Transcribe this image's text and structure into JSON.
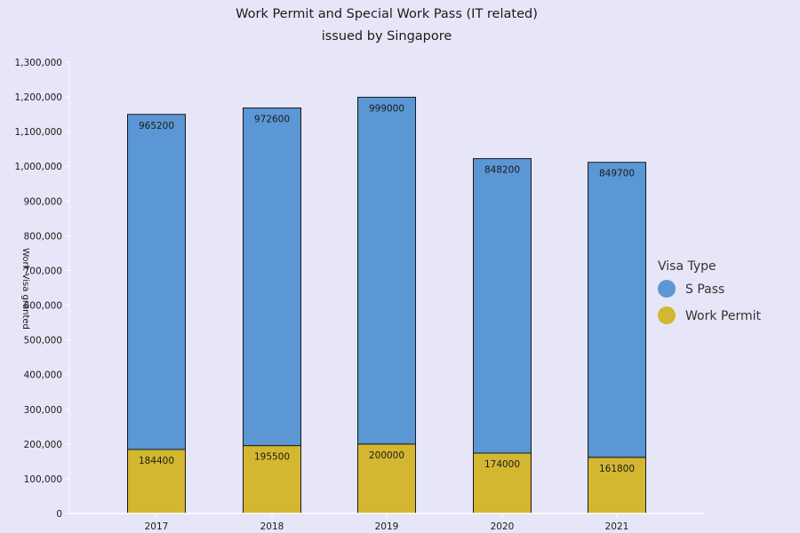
{
  "colors": {
    "background": "#e6e6f8",
    "s_pass": "#5a97d4",
    "work_permit": "#d4b731",
    "bar_stroke": "#1a1a1a",
    "axis": "#ffffff"
  },
  "chart_data": {
    "type": "bar",
    "stacked": true,
    "title_line1": "Work Permit and Special Work Pass (IT related)",
    "title_line2": "issued by Singapore",
    "xlabel": "",
    "ylabel": "Work Visa granted",
    "categories": [
      "2017",
      "2018",
      "2019",
      "2020",
      "2021"
    ],
    "series": [
      {
        "name": "Work Permit",
        "values": [
          184400,
          195500,
          200000,
          174000,
          161800
        ],
        "color_key": "work_permit"
      },
      {
        "name": "S Pass",
        "values": [
          965200,
          972600,
          999000,
          848200,
          849700
        ],
        "color_key": "s_pass"
      }
    ],
    "ylim": [
      0,
      1300000
    ],
    "yticks": [
      0,
      100000,
      200000,
      300000,
      400000,
      500000,
      600000,
      700000,
      800000,
      900000,
      1000000,
      1100000,
      1200000,
      1300000
    ],
    "ytick_labels": [
      "0",
      "100,000",
      "200,000",
      "300,000",
      "400,000",
      "500,000",
      "600,000",
      "700,000",
      "800,000",
      "900,000",
      "1,000,000",
      "1,100,000",
      "1,200,000",
      "1,300,000"
    ],
    "grid": false,
    "legend": {
      "title": "Visa Type",
      "position": "right",
      "items": [
        "S Pass",
        "Work Permit"
      ]
    }
  }
}
